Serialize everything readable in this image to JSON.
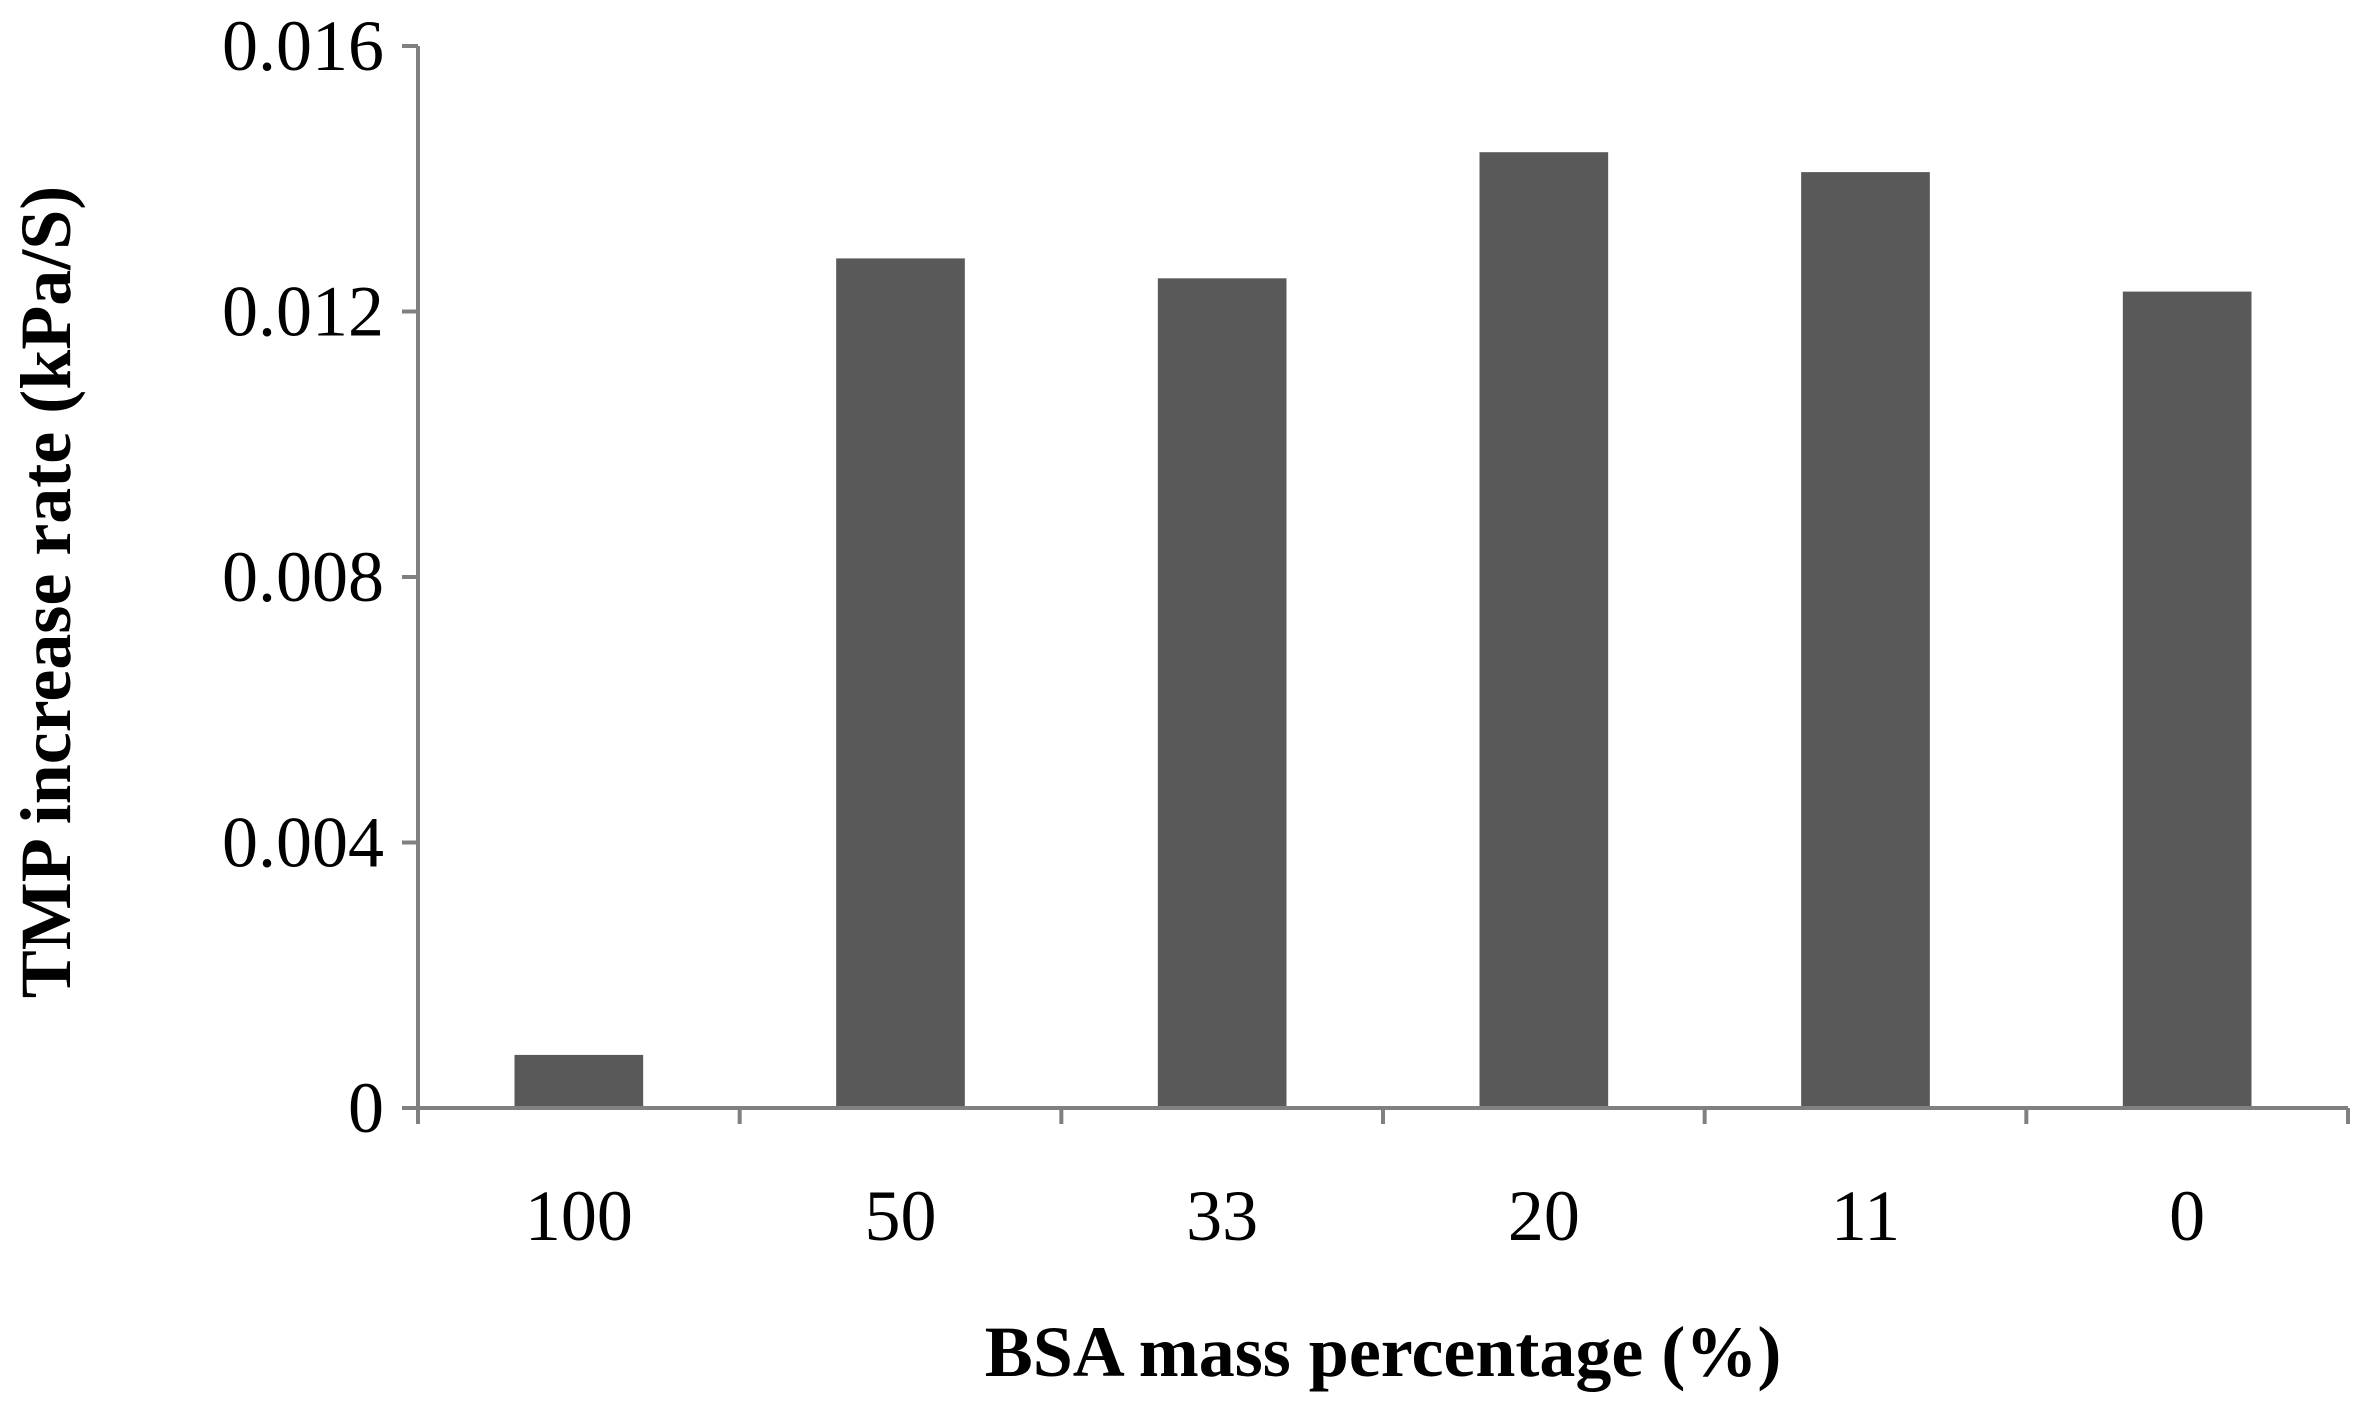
{
  "chart_data": {
    "type": "bar",
    "title": "",
    "xlabel": "BSA mass percentage (%)",
    "ylabel": "TMP increase rate (kPa/S)",
    "categories": [
      "100",
      "50",
      "33",
      "20",
      "11",
      "0"
    ],
    "values": [
      0.0008,
      0.0128,
      0.0125,
      0.0144,
      0.0141,
      0.0123
    ],
    "ylim": [
      0,
      0.016
    ],
    "yticks": [
      0,
      0.004,
      0.008,
      0.012,
      0.016
    ],
    "ytick_labels": [
      "0",
      "0.004",
      "0.008",
      "0.012",
      "0.016"
    ],
    "grid": false,
    "legend": "none",
    "bar_color": "#595959",
    "axis_color": "#808080"
  }
}
